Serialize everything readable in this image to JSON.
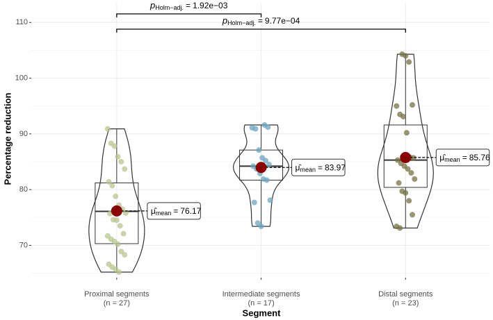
{
  "chart_data": {
    "type": "violin",
    "x_label": "Segment",
    "y_label": "Percentage reduction",
    "categories": [
      "Proximal segments",
      "Intermediate segments",
      "Distal segments"
    ],
    "n_labels": [
      "(n = 27)",
      "(n = 17)",
      "(n = 23)"
    ],
    "ylim": [
      64.2,
      113.4
    ],
    "yticks": [
      70,
      80,
      90,
      100,
      110
    ],
    "yminor": [
      65,
      75,
      85,
      95,
      105
    ],
    "grid": true,
    "mean_color": "#8b0000",
    "mean_label": {
      "symbol": "μ̂",
      "subscript": "mean",
      "equals": "="
    },
    "means": [
      76.17,
      83.97,
      85.76
    ],
    "groups": [
      {
        "color": "#b8c48c",
        "values": [
          90.9,
          88.3,
          87.8,
          85.9,
          85.0,
          83.7,
          81.4,
          80.7,
          78.8,
          77.2,
          76.5,
          75.8,
          75.7,
          74.6,
          74.5,
          73.5,
          72.1,
          71.7,
          71.1,
          70.7,
          70.2,
          68.9,
          68.3,
          66.6,
          66.1,
          65.7,
          65.2
        ],
        "box": {
          "whisker_low": 65.2,
          "q1": 70.3,
          "median": 76.1,
          "q3": 81.2,
          "whisker_high": 90.9
        }
      },
      {
        "color": "#6aa6bf",
        "values": [
          91.6,
          91.2,
          91.1,
          90.9,
          87.1,
          85.7,
          85.2,
          84.5,
          84.2,
          83.7,
          82.9,
          81.9,
          81.7,
          78.1,
          77.7,
          74.0,
          73.4
        ],
        "box": {
          "whisker_low": 73.4,
          "q1": 81.7,
          "median": 84.2,
          "q3": 87.1,
          "whisker_high": 91.6
        }
      },
      {
        "color": "#737344",
        "values": [
          104.3,
          104.0,
          102.9,
          95.2,
          95.0,
          93.5,
          93.1,
          90.2,
          85.8,
          85.7,
          85.3,
          84.7,
          84.2,
          83.7,
          83.0,
          81.9,
          81.2,
          79.7,
          79.4,
          78.0,
          75.5,
          73.4,
          73.1
        ],
        "box": {
          "whisker_low": 73.1,
          "q1": 80.4,
          "median": 85.3,
          "q3": 91.6,
          "whisker_high": 104.3
        }
      }
    ],
    "comparisons": [
      {
        "from": 0,
        "to": 1,
        "symbol": "p",
        "subscript": "Holm−adj.",
        "equals": "=",
        "p": {
          "value": 0.00192,
          "label": "1.92e−03"
        }
      },
      {
        "from": 0,
        "to": 2,
        "symbol": "p",
        "subscript": "Holm−adj.",
        "equals": "=",
        "p": {
          "value": 0.000977,
          "label": "9.77e−04"
        }
      }
    ]
  }
}
